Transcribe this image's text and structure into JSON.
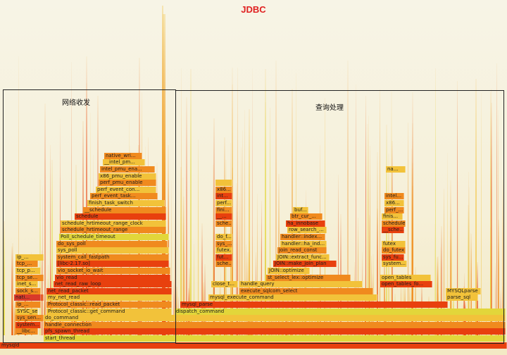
{
  "title": "JDBC",
  "regions": [
    {
      "label": "网络收发"
    },
    {
      "label": "查询处理"
    }
  ],
  "colors": {
    "title": "#e02020",
    "frame_dark": "#e8400e",
    "frame_mid": "#f08a1e",
    "frame_light": "#f2c23a",
    "frame_yellow": "#e2d63a",
    "region_border": "#222222"
  },
  "frames": [
    "mysqld",
    "start_thread",
    "pfs_spawn_thread",
    "handle_connection",
    "do_command",
    "dispatch_command",
    "Protocol_classic::get_command",
    "Protocol_classic::read_packet",
    "my_net_read",
    "net_read_packet",
    "net_read_raw_loop",
    "vio_read",
    "vio_socket_io_wait",
    "[libc-2.17.so]",
    "system_call_fastpath",
    "sys_poll",
    "do_sys_poll",
    "Poll_schedule_timeout",
    "schedule_hrtimeout_range",
    "schedule_hrtimeout_range_clock",
    "schedule",
    "__schedule",
    "finish_task_switch",
    "perf_event_task...",
    "perf_event_con...",
    "perf_pmu_enable",
    "x86_pmu_enable",
    "intel_pmu_ena...",
    "__intel_pm...",
    "native_wri...",
    "mysql_parse",
    "mysql_execute_command",
    "execute_sqlcom_select",
    "handle_query",
    "st_select_lex::optimize",
    "JOIN::optimize",
    "JOIN::make_join_plan",
    "JOIN::extract_func...",
    "join_read_const",
    "handler::ha_ind...",
    "handler::index...",
    "row_search_...",
    "ha_innobase",
    "btr_cur_...",
    "buf...",
    "open_tables",
    "open_tables_fo...",
    "MYSQLparse",
    "parse_sql",
    "close_t...",
    "system...",
    "do_futex",
    "futex",
    "sys_fu...",
    "schedule",
    "__sche...",
    "finis...",
    "perf_...",
    "x86...",
    "intel...",
    "nati...",
    "sock_s...",
    "inet_s...",
    "tcp_se...",
    "tcp_p...",
    "tcp_...",
    "ip_...",
    "ip_...",
    "SYSC_se...",
    "sys_sen...",
    "system...",
    "__libc...",
    "na...",
    "sche...",
    "futex...",
    "sys_...",
    "do_f...",
    "fut...",
    "sche...",
    "__...",
    "fini...",
    "perf...",
    "int...",
    "x86..."
  ]
}
